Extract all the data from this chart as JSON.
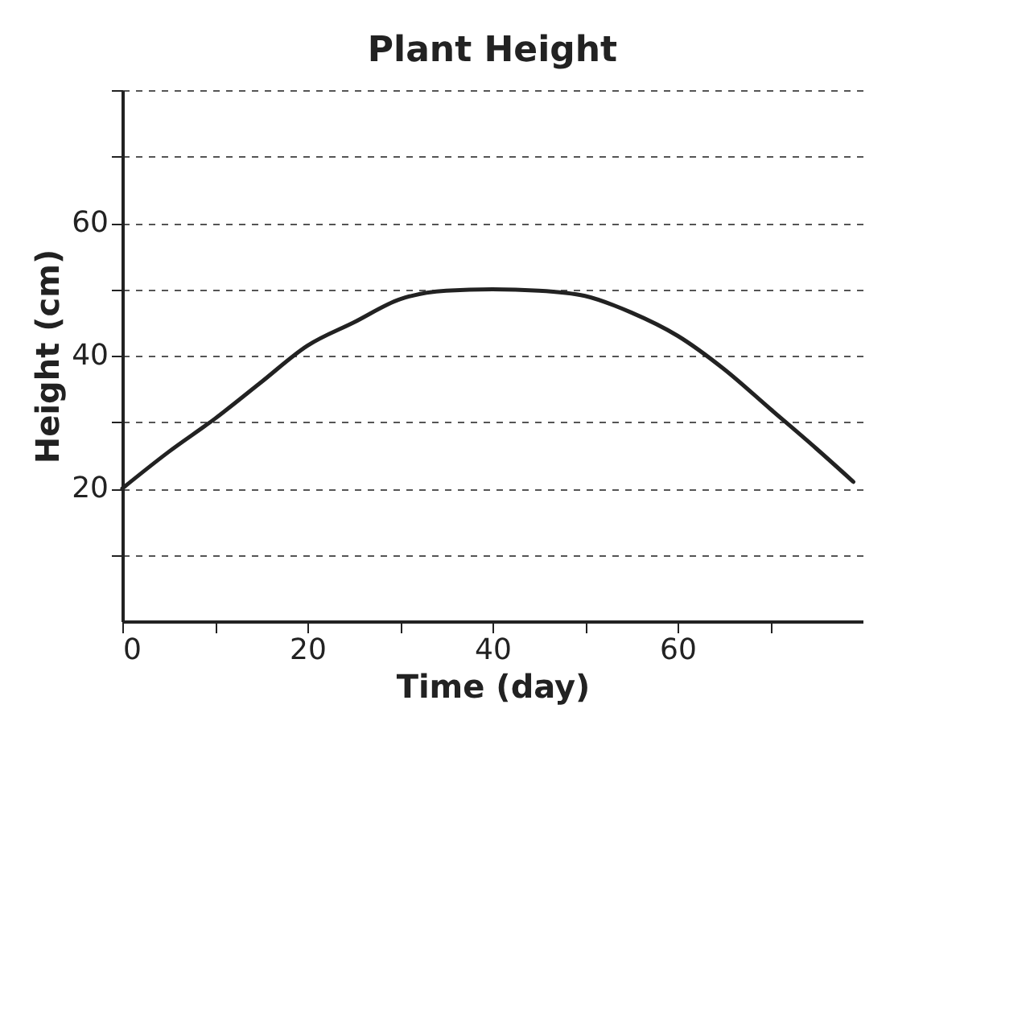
{
  "chart_data": {
    "type": "line",
    "title": "Plant Height",
    "xlabel": "Time (day)",
    "ylabel": "Height (cm)",
    "x": [
      0,
      5,
      10,
      15,
      20,
      25,
      30,
      35,
      40,
      45,
      50,
      55,
      60,
      65,
      70,
      75,
      79
    ],
    "series": [
      {
        "color": "#222222",
        "values": [
          20,
          25.5,
          30.5,
          36,
          41.5,
          45,
          48.5,
          49.8,
          50,
          49.8,
          49,
          46.5,
          43,
          38,
          32,
          26,
          21
        ]
      }
    ],
    "xlim": [
      0,
      80
    ],
    "ylim": [
      0,
      80
    ],
    "xticks": [
      0,
      {
        "value": 10,
        "label": null
      },
      20,
      {
        "value": 30,
        "label": null
      },
      40,
      {
        "value": 50,
        "label": null
      },
      60,
      {
        "value": 70,
        "label": null
      }
    ],
    "yticks": [
      {
        "value": 10,
        "label": null
      },
      20,
      {
        "value": 30,
        "label": null
      },
      40,
      {
        "value": 50,
        "label": null
      },
      60,
      {
        "value": 70,
        "label": null
      },
      {
        "value": 80,
        "label": null
      }
    ],
    "grid": "y",
    "marker": "none",
    "line_style": "solid"
  }
}
